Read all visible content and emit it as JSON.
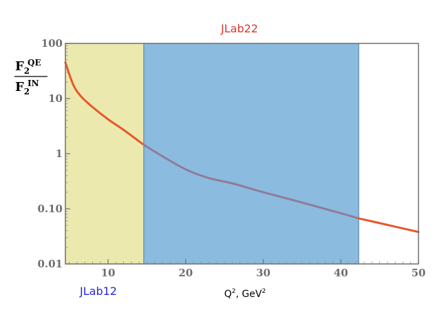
{
  "chart_data": {
    "type": "line",
    "title": "",
    "x_axis": {
      "label_main": "Q",
      "label_sup": "2",
      "label_unit": ", GeV",
      "label_unit_sup": "2",
      "range": [
        4.5,
        50
      ],
      "ticks": [
        10,
        20,
        30,
        40,
        50
      ],
      "tick_labels": [
        "10",
        "20",
        "30",
        "40",
        "50"
      ]
    },
    "y_axis": {
      "scale": "log",
      "range": [
        0.01,
        100
      ],
      "ticks": [
        0.01,
        0.1,
        1,
        10,
        100
      ],
      "tick_labels": [
        "0.01",
        "0.10",
        "1",
        "10",
        "100"
      ],
      "label": {
        "numerator_base": "F",
        "numerator_sub": "2",
        "numerator_sup": "QE",
        "denominator_base": "F",
        "denominator_sub": "2",
        "denominator_sup": "IN"
      }
    },
    "regions": [
      {
        "name": "JLab12",
        "x_range": [
          4.5,
          14.6
        ],
        "color": "#ebe9ad",
        "label_color": "#2727d8"
      },
      {
        "name": "JLab22",
        "x_range": [
          14.6,
          42.3
        ],
        "color": "#8bbbdf",
        "label_color": "#e0322b"
      }
    ],
    "series": [
      {
        "x": [
          4.5,
          5.5,
          6.5,
          8,
          10,
          12,
          14.6,
          17,
          20,
          23,
          26,
          30,
          35,
          40,
          42.3,
          45,
          50
        ],
        "y": [
          45,
          18,
          11,
          7,
          4.2,
          2.7,
          1.45,
          0.9,
          0.52,
          0.36,
          0.29,
          0.2,
          0.13,
          0.083,
          0.067,
          0.055,
          0.038
        ],
        "color": "#e8562a",
        "overlap_color": "#8f7b9a"
      }
    ]
  }
}
